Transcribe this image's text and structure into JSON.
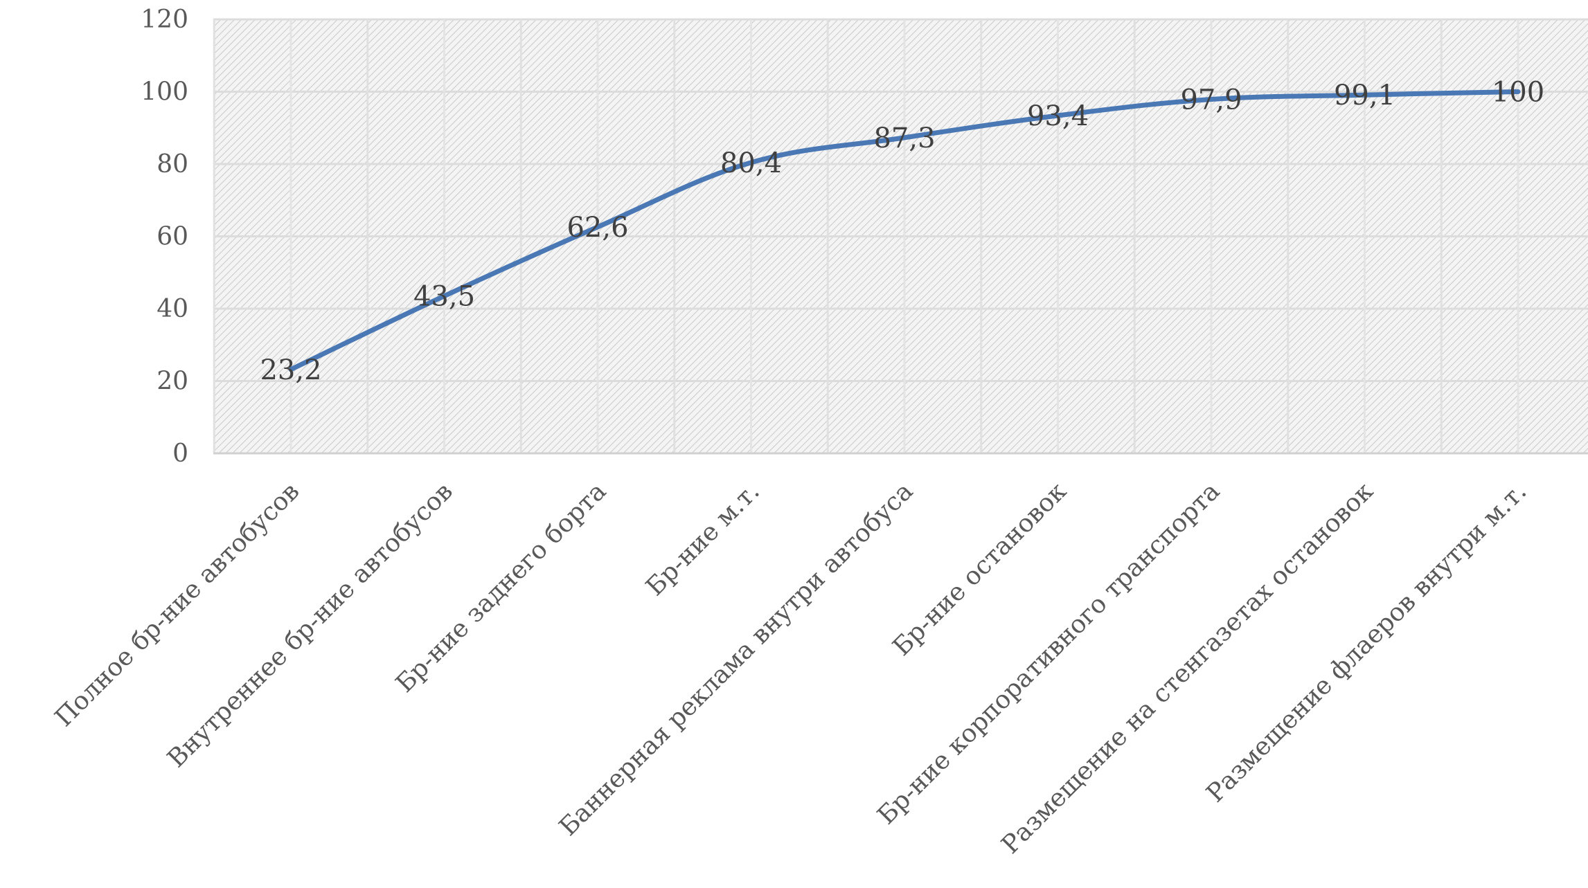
{
  "chart_data": {
    "type": "line",
    "title": "",
    "xlabel": "",
    "ylabel": "",
    "categories": [
      "Полное бр-ние автобусов",
      "Внутреннее бр-ние автобусов",
      "Бр-ние заднего борта",
      "Бр-ние м.т.",
      "Баннерная реклама внутри автобуса",
      "Бр-ние остановок",
      "Бр-ние корпоративного транспорта",
      "Размещение на стенгазетах остановок",
      "Размещение флаеров внутри м.т."
    ],
    "series": [
      {
        "values": [
          23.2,
          43.5,
          62.6,
          80.4,
          87.3,
          93.4,
          97.9,
          99.1,
          100
        ],
        "color": "#4a78b5"
      }
    ],
    "data_labels": [
      "23,2",
      "43,5",
      "62,6",
      "80,4",
      "87,3",
      "93,4",
      "97,9",
      "99,1",
      "100"
    ],
    "y_ticks": [
      "0",
      "20",
      "40",
      "60",
      "80",
      "100",
      "120"
    ],
    "ylim": [
      0,
      120
    ],
    "grid": true,
    "legend": "none",
    "plot_background": "hatched-light-gray"
  }
}
